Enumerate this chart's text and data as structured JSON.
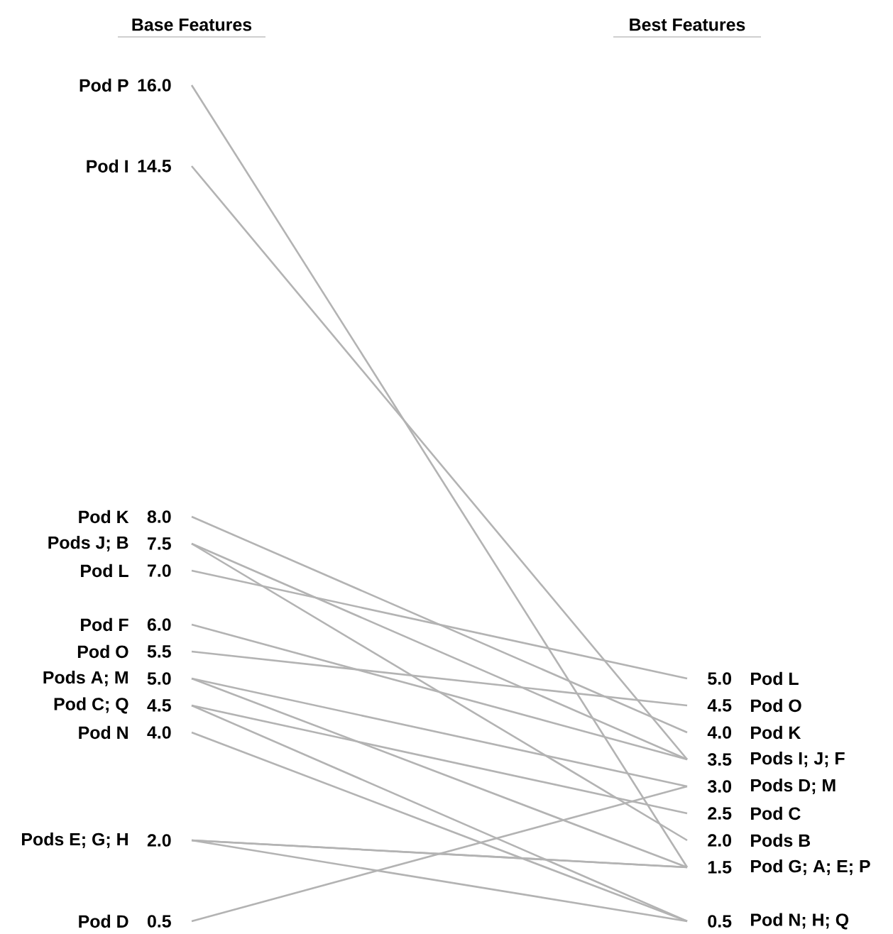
{
  "chart_data": {
    "type": "line",
    "categories": [
      "Base Features",
      "Best Features"
    ],
    "series": [
      {
        "color": "#b3b3b3",
        "values": [
          16.0,
          1.5
        ],
        "value_labels": [
          "16.0",
          "1.5"
        ]
      },
      {
        "color": "#b3b3b3",
        "values": [
          14.5,
          3.5
        ],
        "value_labels": [
          "14.5",
          "3.5"
        ]
      },
      {
        "color": "#b3b3b3",
        "values": [
          8.0,
          4.0
        ],
        "value_labels": [
          "8.0",
          "4.0"
        ]
      },
      {
        "color": "#b3b3b3",
        "values": [
          7.5,
          3.5
        ],
        "value_labels": [
          "7.5",
          null
        ]
      },
      {
        "color": "#b3b3b3",
        "values": [
          7.5,
          2.0
        ],
        "value_labels": [
          null,
          "2.0"
        ]
      },
      {
        "color": "#b3b3b3",
        "values": [
          7.0,
          5.0
        ],
        "value_labels": [
          "7.0",
          "5.0"
        ]
      },
      {
        "color": "#b3b3b3",
        "values": [
          6.0,
          3.5
        ],
        "value_labels": [
          "6.0",
          null
        ]
      },
      {
        "color": "#b3b3b3",
        "values": [
          5.5,
          4.5
        ],
        "value_labels": [
          "5.5",
          "4.5"
        ]
      },
      {
        "color": "#b3b3b3",
        "values": [
          5.0,
          1.5
        ],
        "value_labels": [
          "5.0",
          null
        ]
      },
      {
        "color": "#b3b3b3",
        "values": [
          5.0,
          3.0
        ],
        "value_labels": [
          null,
          "3.0"
        ]
      },
      {
        "color": "#b3b3b3",
        "values": [
          4.5,
          2.5
        ],
        "value_labels": [
          "4.5",
          "2.5"
        ]
      },
      {
        "color": "#b3b3b3",
        "values": [
          4.5,
          0.5
        ],
        "value_labels": [
          null,
          "0.5"
        ]
      },
      {
        "color": "#b3b3b3",
        "values": [
          4.0,
          0.5
        ],
        "value_labels": [
          "4.0",
          null
        ]
      },
      {
        "color": "#b3b3b3",
        "values": [
          2.0,
          1.5
        ],
        "value_labels": [
          "2.0",
          null
        ]
      },
      {
        "color": "#b3b3b3",
        "values": [
          2.0,
          1.5
        ],
        "value_labels": [
          null,
          null
        ]
      },
      {
        "color": "#b3b3b3",
        "values": [
          2.0,
          0.5
        ],
        "value_labels": [
          null,
          null
        ]
      },
      {
        "color": "#b3b3b3",
        "values": [
          0.5,
          3.0
        ],
        "value_labels": [
          "0.5",
          null
        ]
      }
    ],
    "annotations": [
      "Pod P",
      "Pod I",
      "Pod K",
      "Pods J; B",
      "Pod L",
      "Pod F",
      "Pod O",
      "Pods A; M",
      "Pod C; Q",
      "Pod N",
      "Pods E; G; H",
      "Pod D",
      "Pod G; A; E; P",
      "Pods I; J; F",
      "Pod K",
      "Pods B",
      "Pod L",
      "Pod O",
      "Pods D; M",
      "Pod C",
      "Pod N; H; Q"
    ]
  }
}
